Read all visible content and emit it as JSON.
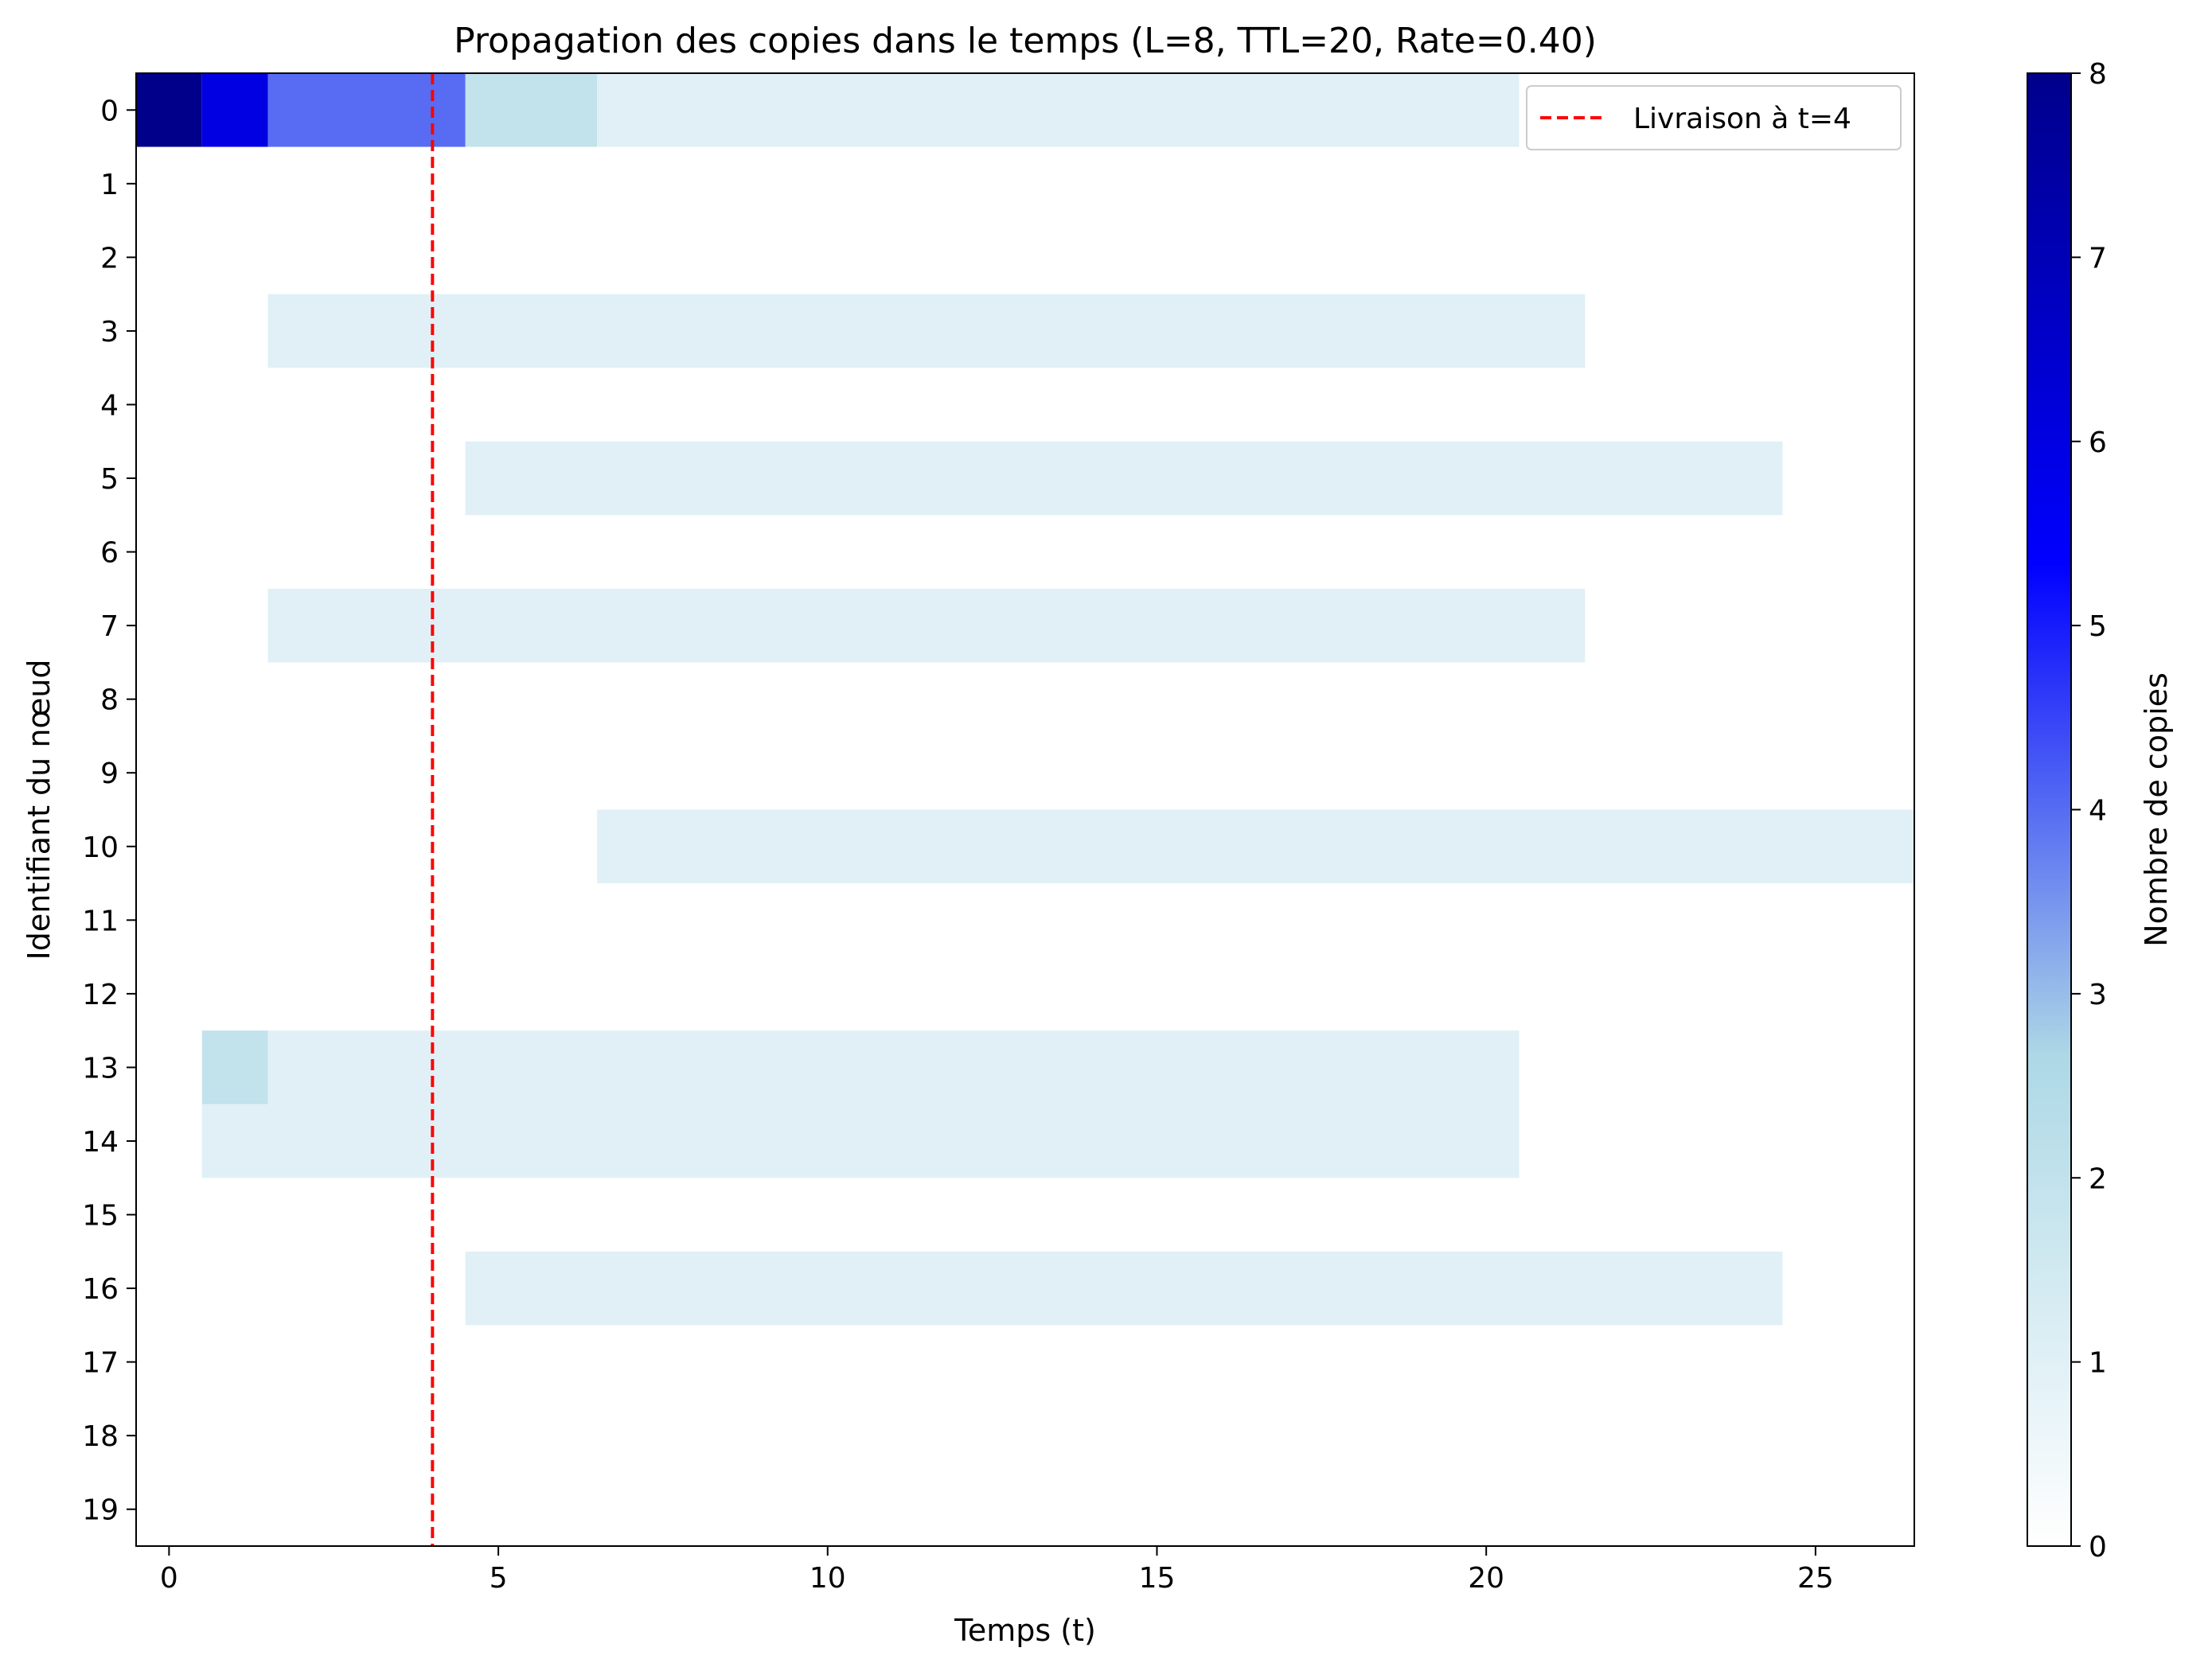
{
  "chart_data": {
    "type": "heatmap",
    "title": "Propagation des copies dans le temps (L=8, TTL=20, Rate=0.40)",
    "xlabel": "Temps (t)",
    "ylabel": "Identifiant du nœud",
    "xlim": [
      -0.5,
      26.5
    ],
    "ylim": [
      -0.5,
      19.5
    ],
    "x_ticks": [
      0,
      5,
      10,
      15,
      20,
      25
    ],
    "y_ticks": [
      0,
      1,
      2,
      3,
      4,
      5,
      6,
      7,
      8,
      9,
      10,
      11,
      12,
      13,
      14,
      15,
      16,
      17,
      18,
      19
    ],
    "colorbar": {
      "label": "Nombre de copies",
      "min": 0,
      "max": 8,
      "ticks": [
        0,
        1,
        2,
        3,
        4,
        5,
        6,
        7,
        8
      ],
      "colors": [
        "#ffffff",
        "#add8e6",
        "#0000ff",
        "#00008b"
      ]
    },
    "rows": [
      {
        "node": 0,
        "segments": [
          {
            "t_start": 0,
            "t_end": 0,
            "copies": 8
          },
          {
            "t_start": 1,
            "t_end": 1,
            "copies": 6
          },
          {
            "t_start": 2,
            "t_end": 4,
            "copies": 4
          },
          {
            "t_start": 5,
            "t_end": 6,
            "copies": 2
          },
          {
            "t_start": 7,
            "t_end": 20,
            "copies": 1
          }
        ]
      },
      {
        "node": 3,
        "segments": [
          {
            "t_start": 2,
            "t_end": 21,
            "copies": 1
          }
        ]
      },
      {
        "node": 5,
        "segments": [
          {
            "t_start": 5,
            "t_end": 24,
            "copies": 1
          }
        ]
      },
      {
        "node": 7,
        "segments": [
          {
            "t_start": 2,
            "t_end": 21,
            "copies": 1
          }
        ]
      },
      {
        "node": 10,
        "segments": [
          {
            "t_start": 7,
            "t_end": 26,
            "copies": 1
          }
        ]
      },
      {
        "node": 13,
        "segments": [
          {
            "t_start": 1,
            "t_end": 1,
            "copies": 2
          },
          {
            "t_start": 2,
            "t_end": 20,
            "copies": 1
          }
        ]
      },
      {
        "node": 14,
        "segments": [
          {
            "t_start": 1,
            "t_end": 20,
            "copies": 1
          }
        ]
      },
      {
        "node": 16,
        "segments": [
          {
            "t_start": 5,
            "t_end": 24,
            "copies": 1
          }
        ]
      }
    ],
    "delivery_line": {
      "x": 4,
      "color": "#ff0000",
      "style": "dashed"
    },
    "legend": {
      "entries": [
        "Livraison à t=4"
      ],
      "placement": "top-right"
    }
  }
}
